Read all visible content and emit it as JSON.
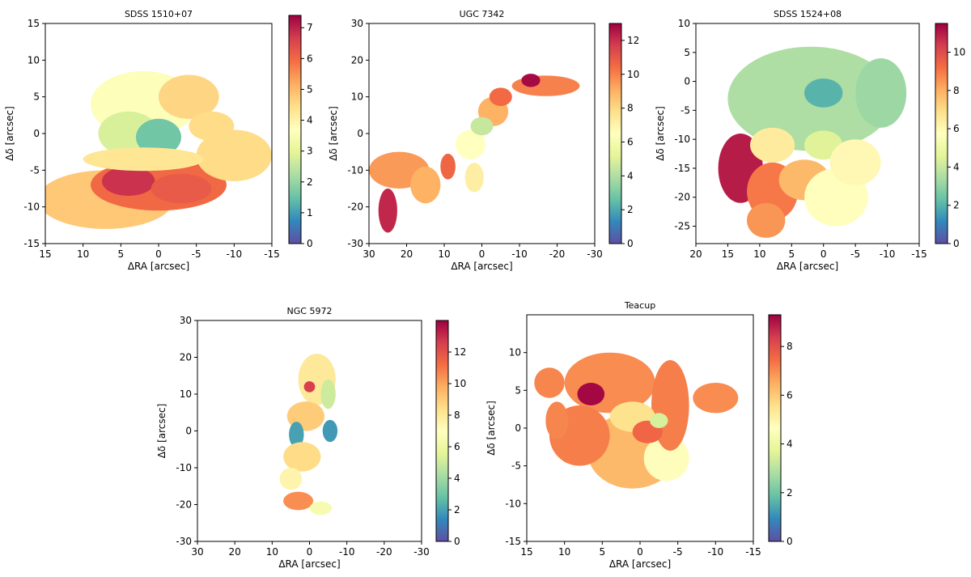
{
  "figure": {
    "colormap_name": "Spectral_r",
    "colormap_stops": [
      "#5e4fa2",
      "#3288bd",
      "#66c2a5",
      "#abdda4",
      "#e6f598",
      "#ffffbf",
      "#fee08b",
      "#fdae61",
      "#f46d43",
      "#d53e4f",
      "#9e0142"
    ],
    "axis_color": "#000000"
  },
  "chart_data": [
    {
      "type": "heatmap",
      "title": "SDSS 1510+07",
      "xlabel": "ΔRA [arcsec]",
      "ylabel": "Δδ [arcsec]",
      "xlim": [
        15,
        -15
      ],
      "ylim": [
        -15,
        15
      ],
      "xticks": [
        15,
        10,
        5,
        0,
        -5,
        -10,
        -15
      ],
      "yticks": [
        -15,
        -10,
        -5,
        0,
        5,
        10,
        15
      ],
      "colorbar": {
        "range": [
          0,
          7.4
        ],
        "ticks": [
          0,
          1,
          2,
          3,
          4,
          5,
          6,
          7
        ]
      },
      "regions": [
        {
          "cx": 7,
          "cy": -9,
          "rx": 9,
          "ry": 4,
          "v": 4.8
        },
        {
          "cx": 0,
          "cy": -7,
          "rx": 9,
          "ry": 3.5,
          "v": 6.0
        },
        {
          "cx": 4,
          "cy": -6.5,
          "rx": 3.5,
          "ry": 2,
          "v": 6.8
        },
        {
          "cx": -3,
          "cy": -7.5,
          "rx": 4,
          "ry": 2,
          "v": 6.2
        },
        {
          "cx": -10,
          "cy": -3,
          "rx": 5,
          "ry": 3.5,
          "v": 4.5
        },
        {
          "cx": 2,
          "cy": 4,
          "rx": 7,
          "ry": 4.5,
          "v": 3.6
        },
        {
          "cx": -4,
          "cy": 5,
          "rx": 4,
          "ry": 3,
          "v": 4.6
        },
        {
          "cx": 4,
          "cy": 0,
          "rx": 4,
          "ry": 3,
          "v": 2.8
        },
        {
          "cx": 0,
          "cy": -0.5,
          "rx": 3,
          "ry": 2.5,
          "v": 1.6
        },
        {
          "cx": 2,
          "cy": -3.5,
          "rx": 8,
          "ry": 1.6,
          "v": 4.3
        },
        {
          "cx": -7,
          "cy": 1,
          "rx": 3,
          "ry": 2,
          "v": 4.5
        }
      ]
    },
    {
      "type": "heatmap",
      "title": "UGC 7342",
      "xlabel": "ΔRA [arcsec]",
      "ylabel": "Δδ [arcsec]",
      "xlim": [
        30,
        -30
      ],
      "ylim": [
        -30,
        30
      ],
      "xticks": [
        30,
        20,
        10,
        0,
        -10,
        -20,
        -30
      ],
      "yticks": [
        -30,
        -20,
        -10,
        0,
        10,
        20,
        30
      ],
      "colorbar": {
        "range": [
          0,
          13
        ],
        "ticks": [
          0,
          2,
          4,
          6,
          8,
          10,
          12
        ]
      },
      "regions": [
        {
          "cx": 22,
          "cy": -10,
          "rx": 8,
          "ry": 5,
          "v": 9.5
        },
        {
          "cx": 25,
          "cy": -21,
          "rx": 2.5,
          "ry": 6,
          "v": 12.2
        },
        {
          "cx": 15,
          "cy": -14,
          "rx": 4,
          "ry": 5,
          "v": 9.0
        },
        {
          "cx": 3,
          "cy": -3,
          "rx": 4,
          "ry": 4,
          "v": 6.5
        },
        {
          "cx": -3,
          "cy": 6,
          "rx": 4,
          "ry": 4,
          "v": 9.0
        },
        {
          "cx": -5,
          "cy": 10,
          "rx": 3,
          "ry": 2.5,
          "v": 10.5
        },
        {
          "cx": -17,
          "cy": 13,
          "rx": 9,
          "ry": 2.8,
          "v": 10.0
        },
        {
          "cx": -13,
          "cy": 14.5,
          "rx": 2.5,
          "ry": 1.8,
          "v": 12.8
        },
        {
          "cx": 9,
          "cy": -9,
          "rx": 2,
          "ry": 3.5,
          "v": 10.6
        },
        {
          "cx": 2,
          "cy": -12,
          "rx": 2.5,
          "ry": 4,
          "v": 7.2
        },
        {
          "cx": 0,
          "cy": 2,
          "rx": 3,
          "ry": 2.5,
          "v": 4.5
        }
      ]
    },
    {
      "type": "heatmap",
      "title": "SDSS 1524+08",
      "xlabel": "ΔRA [arcsec]",
      "ylabel": "Δδ [arcsec]",
      "xlim": [
        20,
        -15
      ],
      "ylim": [
        -28,
        10
      ],
      "xticks": [
        20,
        15,
        10,
        5,
        0,
        -5,
        -10,
        -15
      ],
      "yticks": [
        -25,
        -20,
        -15,
        -10,
        -5,
        0,
        5,
        10
      ],
      "colorbar": {
        "range": [
          0,
          11.5
        ],
        "ticks": [
          0,
          2,
          4,
          6,
          8,
          10
        ]
      },
      "regions": [
        {
          "cx": 2,
          "cy": -3,
          "rx": 13,
          "ry": 9,
          "v": 3.5
        },
        {
          "cx": -9,
          "cy": -2,
          "rx": 4,
          "ry": 6,
          "v": 3.2
        },
        {
          "cx": 0,
          "cy": -2,
          "rx": 3,
          "ry": 2.5,
          "v": 2.0
        },
        {
          "cx": 13,
          "cy": -15,
          "rx": 3.5,
          "ry": 6,
          "v": 11.0
        },
        {
          "cx": 8,
          "cy": -19,
          "rx": 4,
          "ry": 5,
          "v": 9.0
        },
        {
          "cx": 8,
          "cy": -11,
          "rx": 3.5,
          "ry": 3,
          "v": 6.5
        },
        {
          "cx": 3,
          "cy": -17,
          "rx": 4,
          "ry": 3.5,
          "v": 7.8
        },
        {
          "cx": -2,
          "cy": -20,
          "rx": 5,
          "ry": 5,
          "v": 5.8
        },
        {
          "cx": 0,
          "cy": -11,
          "rx": 3,
          "ry": 2.5,
          "v": 4.5
        },
        {
          "cx": 9,
          "cy": -24,
          "rx": 3,
          "ry": 3,
          "v": 8.5
        },
        {
          "cx": -5,
          "cy": -14,
          "rx": 4,
          "ry": 4,
          "v": 6.0
        }
      ]
    },
    {
      "type": "heatmap",
      "title": "NGC 5972",
      "xlabel": "ΔRA [arcsec]",
      "ylabel": "Δδ [arcsec]",
      "xlim": [
        30,
        -30
      ],
      "ylim": [
        -30,
        30
      ],
      "xticks": [
        30,
        20,
        10,
        0,
        -10,
        -20,
        -30
      ],
      "yticks": [
        -30,
        -20,
        -10,
        0,
        10,
        20,
        30
      ],
      "colorbar": {
        "range": [
          0,
          14
        ],
        "ticks": [
          0,
          2,
          4,
          6,
          8,
          10,
          12
        ]
      },
      "regions": [
        {
          "cx": -2,
          "cy": 14,
          "rx": 5,
          "ry": 7,
          "v": 8.0
        },
        {
          "cx": 1,
          "cy": 4,
          "rx": 5,
          "ry": 4,
          "v": 9.0
        },
        {
          "cx": 3.5,
          "cy": -1,
          "rx": 2,
          "ry": 3.5,
          "v": 2.0
        },
        {
          "cx": -5.5,
          "cy": 0,
          "rx": 2,
          "ry": 3,
          "v": 1.8
        },
        {
          "cx": 2,
          "cy": -7,
          "rx": 5,
          "ry": 4,
          "v": 8.5
        },
        {
          "cx": 5,
          "cy": -13,
          "rx": 3,
          "ry": 3,
          "v": 7.5
        },
        {
          "cx": 3,
          "cy": -19,
          "rx": 4,
          "ry": 2.5,
          "v": 10.5
        },
        {
          "cx": -3,
          "cy": -21,
          "rx": 3,
          "ry": 1.8,
          "v": 6.5
        },
        {
          "cx": -5,
          "cy": 10,
          "rx": 2,
          "ry": 4,
          "v": 5.0
        },
        {
          "cx": 0,
          "cy": 12,
          "rx": 1.5,
          "ry": 1.5,
          "v": 12.5
        }
      ]
    },
    {
      "type": "heatmap",
      "title": "Teacup",
      "xlabel": "ΔRA [arcsec]",
      "ylabel": "Δδ [arcsec]",
      "xlim": [
        15,
        -15
      ],
      "ylim": [
        -15,
        15
      ],
      "xticks": [
        15,
        10,
        5,
        0,
        -5,
        -10,
        -15
      ],
      "yticks": [
        -15,
        -10,
        -5,
        0,
        5,
        10
      ],
      "colorbar": {
        "range": [
          0,
          9.3
        ],
        "ticks": [
          0,
          2,
          4,
          6,
          8
        ]
      },
      "regions": [
        {
          "cx": 4,
          "cy": 6,
          "rx": 6,
          "ry": 4,
          "v": 7.0
        },
        {
          "cx": 1,
          "cy": -3,
          "rx": 6,
          "ry": 5,
          "v": 6.3
        },
        {
          "cx": 8,
          "cy": -1,
          "rx": 4,
          "ry": 4,
          "v": 7.2
        },
        {
          "cx": -3.5,
          "cy": -4,
          "rx": 3,
          "ry": 3,
          "v": 4.7
        },
        {
          "cx": -4,
          "cy": 3,
          "rx": 2.5,
          "ry": 6,
          "v": 7.2
        },
        {
          "cx": -10,
          "cy": 4,
          "rx": 3,
          "ry": 2,
          "v": 7.0
        },
        {
          "cx": 6.5,
          "cy": 4.5,
          "rx": 1.8,
          "ry": 1.5,
          "v": 9.2
        },
        {
          "cx": 1,
          "cy": 1.5,
          "rx": 3,
          "ry": 2,
          "v": 5.5
        },
        {
          "cx": -1,
          "cy": -0.5,
          "rx": 2,
          "ry": 1.5,
          "v": 7.6
        },
        {
          "cx": -2.5,
          "cy": 1,
          "rx": 1.2,
          "ry": 1,
          "v": 3.5
        },
        {
          "cx": 12,
          "cy": 6,
          "rx": 2,
          "ry": 2,
          "v": 7.1
        },
        {
          "cx": 11,
          "cy": 1,
          "rx": 1.5,
          "ry": 2.5,
          "v": 7.1
        }
      ]
    }
  ]
}
